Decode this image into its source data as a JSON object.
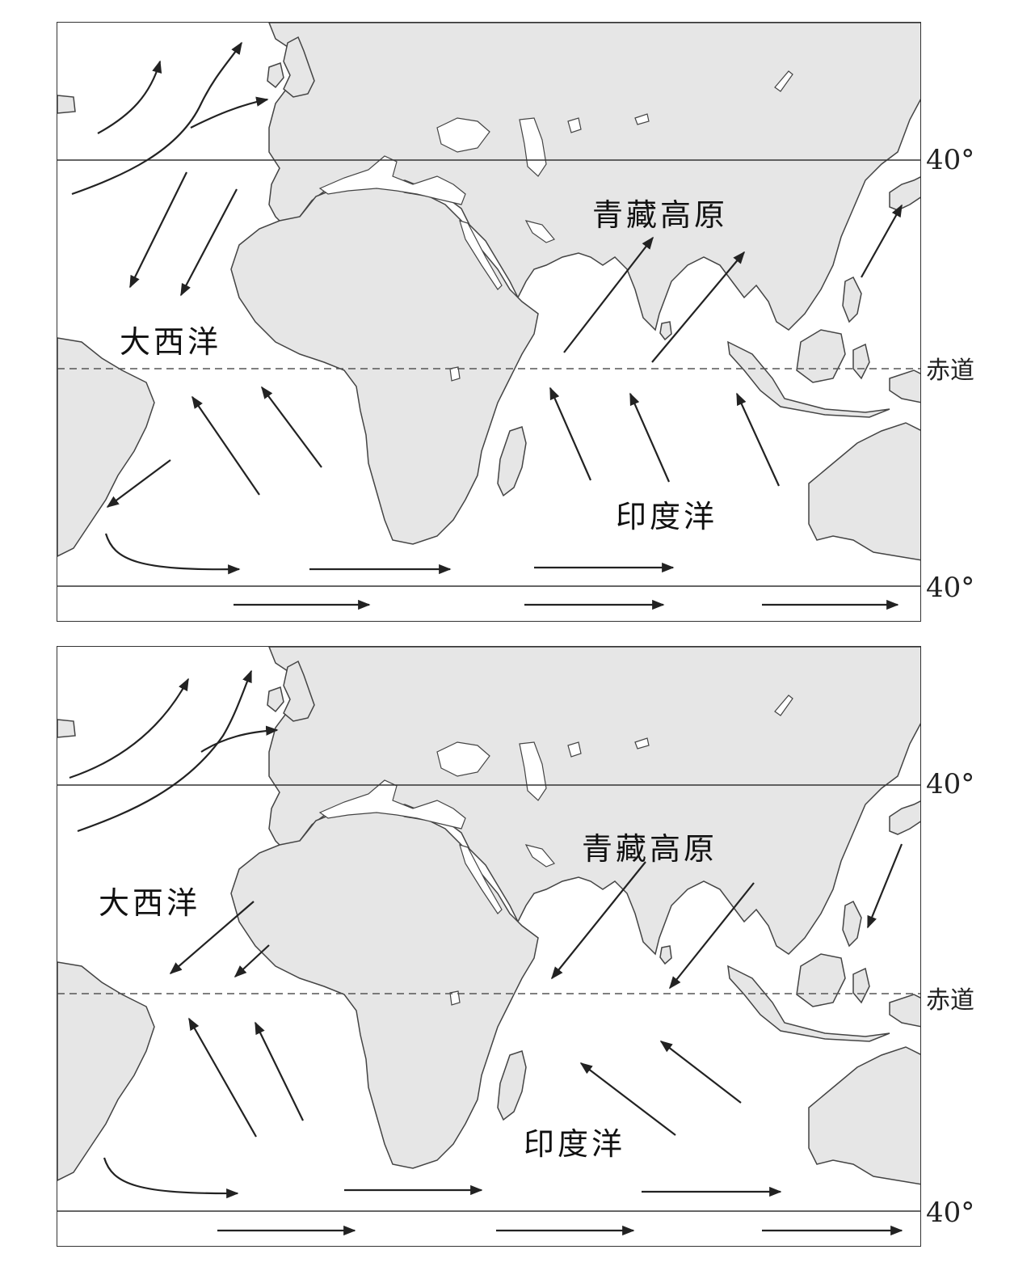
{
  "colors": {
    "land": "#e6e6e6",
    "ocean": "#ffffff",
    "coast": "#444444",
    "arrow": "#222222"
  },
  "labels": {
    "atlantic": "大西洋",
    "indian_ocean": "印度洋",
    "plateau": "青藏高原",
    "lat_40_north": "40°",
    "lat_40_south": "40°",
    "equator": "赤道"
  },
  "maps": [
    {
      "id": "top",
      "season_wind": "southwest monsoon (toward Asia)"
    },
    {
      "id": "bottom",
      "season_wind": "northeast monsoon (away from Asia)"
    }
  ],
  "icons": {
    "wind_arrow": "arrow-icon"
  }
}
